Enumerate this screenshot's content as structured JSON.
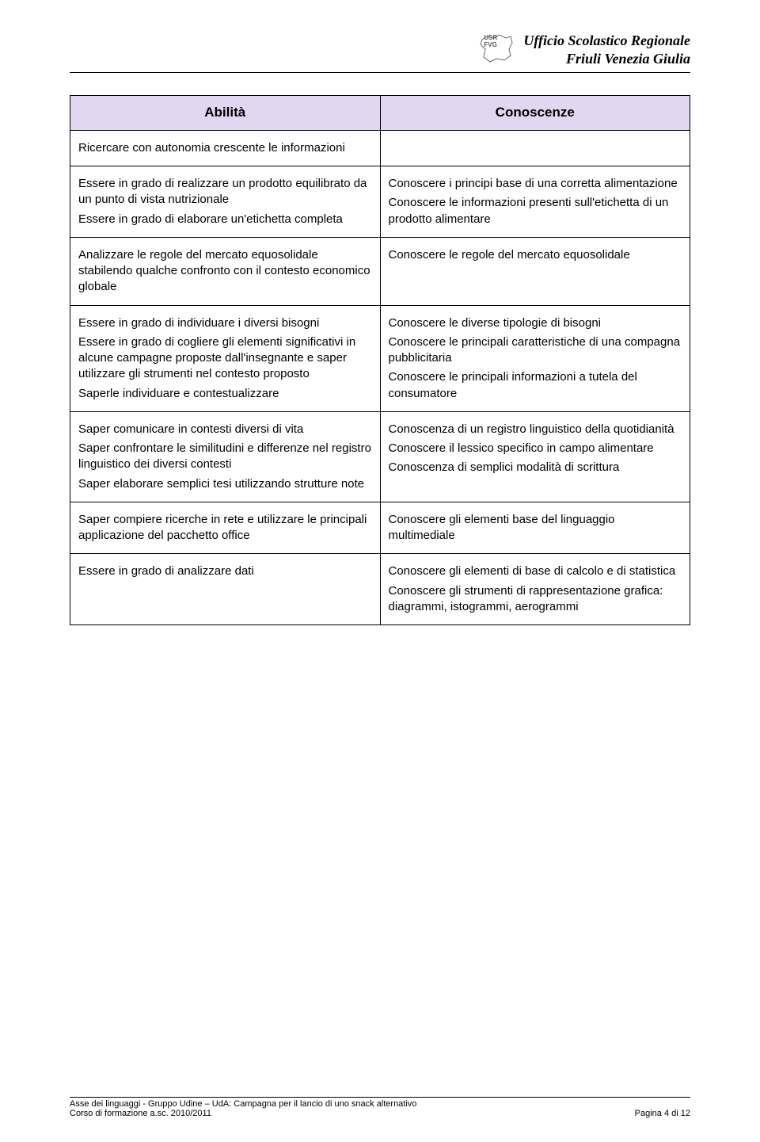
{
  "header": {
    "org_line1": "Ufficio Scolastico Regionale",
    "org_line2": "Friuli Venezia Giulia",
    "logo_text1": "USR",
    "logo_text2": "FVG"
  },
  "table": {
    "header_background": "#e3d6f0",
    "border_color": "#000000",
    "columns": [
      "Abilità",
      "Conoscenze"
    ],
    "rows": [
      {
        "left": [
          "Ricercare con autonomia crescente le informazioni"
        ],
        "right": []
      },
      {
        "left": [
          "Essere in grado di realizzare un prodotto equilibrato da un punto di vista nutrizionale",
          "Essere in grado di elaborare un'etichetta completa"
        ],
        "right": [
          "Conoscere i principi base di una corretta alimentazione",
          "Conoscere le informazioni presenti sull'etichetta di un prodotto alimentare"
        ]
      },
      {
        "left": [
          "Analizzare le regole del mercato equosolidale stabilendo qualche confronto con il contesto economico globale"
        ],
        "right": [
          "Conoscere le regole del mercato equosolidale"
        ]
      },
      {
        "left": [
          "Essere in grado di individuare i diversi bisogni",
          "Essere in grado di cogliere gli elementi significativi in alcune campagne proposte dall'insegnante e saper utilizzare gli strumenti nel contesto proposto",
          "Saperle individuare e contestualizzare"
        ],
        "right": [
          "Conoscere le diverse tipologie di bisogni",
          "Conoscere le principali caratteristiche di una compagna pubblicitaria",
          "Conoscere le  principali informazioni a tutela del consumatore"
        ]
      },
      {
        "left": [
          "Saper comunicare in contesti diversi di vita",
          "Saper confrontare le similitudini e differenze nel registro linguistico dei diversi contesti",
          "Saper elaborare semplici tesi utilizzando strutture note"
        ],
        "right": [
          "Conoscenza di un registro linguistico della quotidianità",
          "Conoscere il lessico specifico in campo alimentare",
          "Conoscenza di semplici modalità di scrittura"
        ]
      },
      {
        "left": [
          "Saper compiere ricerche in rete e utilizzare le principali applicazione del pacchetto office"
        ],
        "right": [
          "Conoscere gli elementi base del linguaggio multimediale"
        ]
      },
      {
        "left": [
          "Essere in grado di analizzare dati"
        ],
        "right": [
          "Conoscere gli elementi di base di calcolo e di statistica",
          "Conoscere gli strumenti di rappresentazione grafica: diagrammi, istogrammi, aerogrammi"
        ]
      }
    ]
  },
  "footer": {
    "left_line1": "Asse dei linguaggi - Gruppo Udine – UdA: Campagna per il lancio di uno snack alternativo",
    "left_line2": "Corso di formazione a.sc. 2010/2011",
    "right": "Pagina 4 di 12"
  }
}
